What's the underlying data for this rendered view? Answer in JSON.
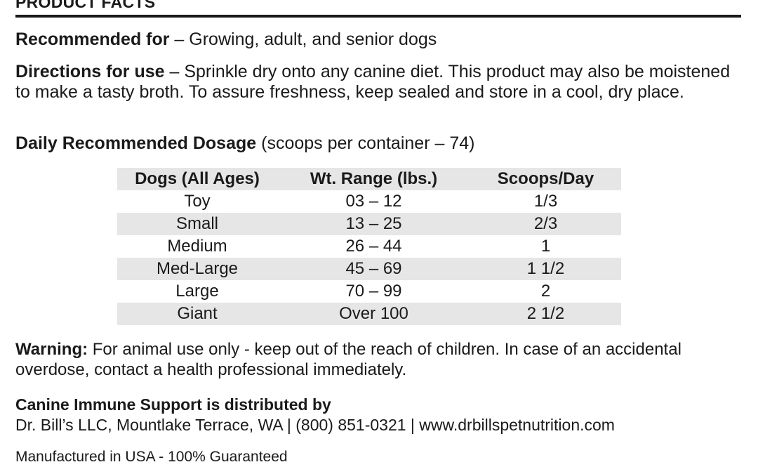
{
  "heading": "PRODUCT FACTS",
  "recommended": {
    "label": "Recommended for",
    "text": " – Growing, adult, and senior dogs"
  },
  "directions": {
    "label": "Directions for use",
    "text": " – Sprinkle dry onto any canine diet. This product may also be moistened to make a tasty broth. To assure freshness, keep sealed and store in a cool, dry place."
  },
  "dosage": {
    "label": "Daily Recommended Dosage",
    "text": " (scoops per container – 74)",
    "headers": [
      "Dogs (All Ages)",
      "Wt. Range (lbs.)",
      "Scoops/Day"
    ],
    "rows": [
      [
        "Toy",
        "03 – 12",
        "1/3"
      ],
      [
        "Small",
        "13 – 25",
        "2/3"
      ],
      [
        "Medium",
        "26 – 44",
        "1"
      ],
      [
        "Med-Large",
        "45 – 69",
        "1 1/2"
      ],
      [
        "Large",
        "70 – 99",
        "2"
      ],
      [
        "Giant",
        "Over 100",
        "2 1/2"
      ]
    ]
  },
  "warning": {
    "label": "Warning:",
    "text": " For animal use only - keep out of the reach of children. In case of an accidental overdose, contact a health professional immediately."
  },
  "distribution": {
    "title": "Canine Immune Support is distributed by",
    "line": "Dr. Bill’s LLC, Mountlake Terrace, WA | (800) 851-0321 | www.drbillspetnutrition.com"
  },
  "manufactured": "Manufactured in USA - 100% Guaranteed"
}
